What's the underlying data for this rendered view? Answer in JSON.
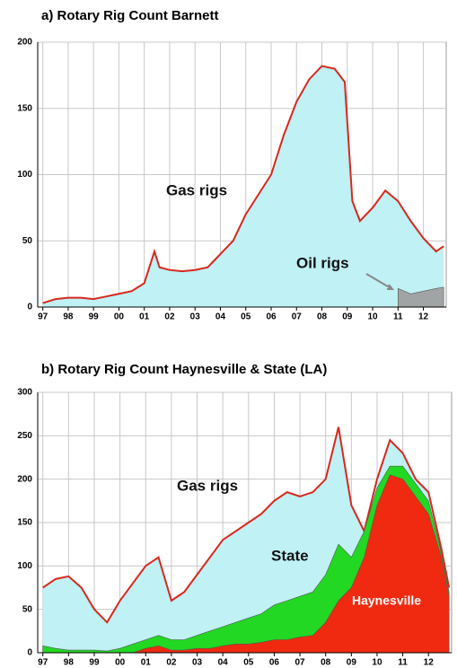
{
  "chart_data": [
    {
      "type": "area",
      "title": "a) Rotary Rig Count Barnett",
      "x": [
        1997,
        1997.5,
        1998,
        1998.5,
        1999,
        1999.5,
        2000,
        2000.5,
        2001,
        2001.4,
        2001.6,
        2002,
        2002.5,
        2003,
        2003.5,
        2004,
        2004.5,
        2005,
        2005.5,
        2006,
        2006.5,
        2007,
        2007.5,
        2008,
        2008.5,
        2008.9,
        2009.2,
        2009.5,
        2010,
        2010.5,
        2011,
        2011.5,
        2012,
        2012.5,
        2012.8
      ],
      "series": [
        {
          "name": "Gas rigs",
          "color": "#bff1f5",
          "line_color": "#d8281c",
          "values": [
            3,
            6,
            7,
            7,
            6,
            8,
            10,
            12,
            18,
            42,
            30,
            28,
            27,
            28,
            30,
            40,
            50,
            70,
            85,
            100,
            130,
            155,
            172,
            182,
            180,
            170,
            80,
            65,
            75,
            88,
            80,
            65,
            52,
            42,
            46
          ]
        },
        {
          "name": "Oil rigs",
          "color": "#a0a4a4",
          "values": [
            null,
            null,
            null,
            null,
            null,
            null,
            null,
            null,
            null,
            null,
            null,
            null,
            null,
            null,
            null,
            null,
            null,
            null,
            null,
            null,
            null,
            null,
            null,
            null,
            null,
            null,
            null,
            null,
            null,
            null,
            14,
            10,
            12,
            14,
            15
          ]
        }
      ],
      "xlim": [
        1996.8,
        2012.9
      ],
      "xticks": [
        {
          "value": 1997,
          "label": "97"
        },
        {
          "value": 1998,
          "label": "98"
        },
        {
          "value": 1999,
          "label": "99"
        },
        {
          "value": 2000,
          "label": "00"
        },
        {
          "value": 2001,
          "label": "01"
        },
        {
          "value": 2002,
          "label": "02"
        },
        {
          "value": 2003,
          "label": "03"
        },
        {
          "value": 2004,
          "label": "04"
        },
        {
          "value": 2005,
          "label": "05"
        },
        {
          "value": 2006,
          "label": "06"
        },
        {
          "value": 2007,
          "label": "07"
        },
        {
          "value": 2008,
          "label": "08"
        },
        {
          "value": 2009,
          "label": "09"
        },
        {
          "value": 2010,
          "label": "10"
        },
        {
          "value": 2011,
          "label": "11"
        },
        {
          "value": 2012,
          "label": "12"
        }
      ],
      "ylim": [
        0,
        200
      ],
      "yticks": [
        0,
        50,
        100,
        150,
        200
      ],
      "grid": true
    },
    {
      "type": "area",
      "title": "b) Rotary Rig Count Haynesville & State (LA)",
      "x": [
        1997,
        1997.5,
        1998,
        1998.5,
        1999,
        1999.5,
        2000,
        2000.5,
        2001,
        2001.5,
        2002,
        2002.5,
        2003,
        2003.5,
        2004,
        2004.5,
        2005,
        2005.5,
        2006,
        2006.5,
        2007,
        2007.5,
        2008,
        2008.5,
        2009,
        2009.5,
        2010,
        2010.5,
        2011,
        2011.5,
        2012,
        2012.5,
        2012.8
      ],
      "series": [
        {
          "name": "Gas rigs",
          "color": "#bff1f5",
          "line_color": "#d8281c",
          "values": [
            75,
            85,
            88,
            75,
            50,
            35,
            60,
            80,
            100,
            110,
            60,
            70,
            90,
            110,
            130,
            140,
            150,
            160,
            175,
            185,
            180,
            185,
            200,
            260,
            170,
            140,
            200,
            245,
            230,
            200,
            185,
            120,
            75
          ]
        },
        {
          "name": "State",
          "color": "#22d822",
          "values": [
            8,
            5,
            3,
            3,
            3,
            2,
            5,
            10,
            15,
            20,
            15,
            15,
            20,
            25,
            30,
            35,
            40,
            45,
            55,
            60,
            65,
            70,
            90,
            125,
            110,
            140,
            190,
            215,
            215,
            195,
            175,
            115,
            70
          ]
        },
        {
          "name": "Haynesville",
          "color": "#f02a10",
          "values": [
            0,
            0,
            0,
            0,
            0,
            0,
            0,
            0,
            5,
            8,
            3,
            3,
            5,
            5,
            8,
            10,
            10,
            12,
            15,
            15,
            18,
            20,
            35,
            60,
            75,
            110,
            170,
            205,
            200,
            180,
            160,
            110,
            65
          ]
        }
      ],
      "xlim": [
        1996.8,
        2012.9
      ],
      "xticks": [
        {
          "value": 1997,
          "label": "97"
        },
        {
          "value": 1998,
          "label": "98"
        },
        {
          "value": 1999,
          "label": "99"
        },
        {
          "value": 2000,
          "label": "00"
        },
        {
          "value": 2001,
          "label": "01"
        },
        {
          "value": 2002,
          "label": "02"
        },
        {
          "value": 2003,
          "label": "03"
        },
        {
          "value": 2004,
          "label": "04"
        },
        {
          "value": 2005,
          "label": "05"
        },
        {
          "value": 2006,
          "label": "06"
        },
        {
          "value": 2007,
          "label": "07"
        },
        {
          "value": 2008,
          "label": "08"
        },
        {
          "value": 2009,
          "label": "09"
        },
        {
          "value": 2010,
          "label": "10"
        },
        {
          "value": 2011,
          "label": "11"
        },
        {
          "value": 2012,
          "label": "12"
        }
      ],
      "ylim": [
        0,
        300
      ],
      "yticks": [
        0,
        50,
        100,
        150,
        200,
        250,
        300
      ],
      "grid": true
    }
  ]
}
